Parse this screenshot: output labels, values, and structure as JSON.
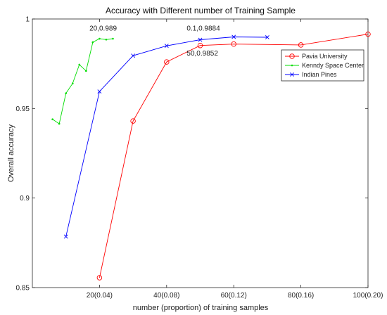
{
  "chart_data": {
    "type": "line",
    "title": "Accuracy with Different number of Training Sample",
    "xlabel": "number (proportion) of training samples",
    "ylabel": "Overall accuracy",
    "xlim": [
      0,
      100
    ],
    "ylim": [
      0.85,
      1.0
    ],
    "x_ticks": [
      {
        "value": 20,
        "label": "20(0.04)"
      },
      {
        "value": 40,
        "label": "40(0.08)"
      },
      {
        "value": 60,
        "label": "60(0.12)"
      },
      {
        "value": 80,
        "label": "80(0.16)"
      },
      {
        "value": 100,
        "label": "100(0.20)"
      }
    ],
    "y_ticks": [
      {
        "value": 0.85,
        "label": "0.85"
      },
      {
        "value": 0.9,
        "label": "0.9"
      },
      {
        "value": 0.95,
        "label": "0.95"
      },
      {
        "value": 1.0,
        "label": "1"
      }
    ],
    "grid": false,
    "legend_position": "top-right",
    "series": [
      {
        "name": "Pavia University",
        "color": "#ff0000",
        "marker": "circle",
        "x": [
          20,
          30,
          40,
          50,
          60,
          80,
          100
        ],
        "y": [
          0.8555,
          0.943,
          0.976,
          0.9852,
          0.986,
          0.9855,
          0.9915
        ]
      },
      {
        "name": "Kenndy Space Center",
        "color": "#00dd00",
        "marker": "dot",
        "x": [
          6,
          8,
          10,
          12,
          14,
          16,
          18,
          20,
          22,
          24
        ],
        "y": [
          0.944,
          0.9415,
          0.9585,
          0.964,
          0.9745,
          0.971,
          0.987,
          0.989,
          0.9885,
          0.989
        ]
      },
      {
        "name": "Indian Pines",
        "color": "#0000ff",
        "marker": "cross",
        "x": [
          10,
          20,
          30,
          40,
          50,
          60,
          70
        ],
        "y": [
          0.8785,
          0.9595,
          0.9795,
          0.985,
          0.9884,
          0.99,
          0.9898
        ]
      }
    ],
    "annotations": [
      {
        "text": "20,0.989",
        "x": 17,
        "y": 0.9935
      },
      {
        "text": "0.1,0.9884",
        "x": 46,
        "y": 0.9935
      },
      {
        "text": "50,0.9852",
        "x": 46,
        "y": 0.9795
      }
    ]
  }
}
